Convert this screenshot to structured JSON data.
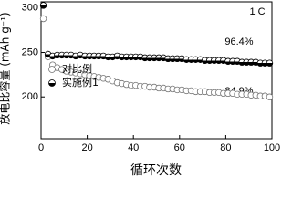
{
  "chart_data": {
    "type": "scatter",
    "y_label": "放电比容量 (mAh g⁻¹)",
    "x_label": "循环次数",
    "annotations": [
      "1 C",
      "96.4%",
      "84.9%"
    ],
    "x": [
      1,
      3,
      5,
      7,
      9,
      11,
      13,
      15,
      17,
      19,
      21,
      23,
      25,
      27,
      29,
      31,
      33,
      35,
      37,
      39,
      41,
      43,
      45,
      47,
      49,
      51,
      53,
      55,
      57,
      59,
      61,
      63,
      65,
      67,
      69,
      71,
      73,
      75,
      77,
      79,
      81,
      83,
      85,
      87,
      89,
      91,
      93,
      95,
      97,
      99
    ],
    "series": [
      {
        "name": "对比例",
        "color": "#777777",
        "marker": "open",
        "values": [
          288,
          245,
          236,
          233,
          231,
          229,
          228,
          227,
          226,
          225,
          224,
          223,
          222,
          221,
          220,
          218,
          216,
          215,
          214,
          213,
          213,
          212,
          212,
          211,
          211,
          210,
          210,
          209,
          209,
          208,
          208,
          207,
          207,
          206,
          206,
          206,
          205,
          205,
          205,
          204,
          204,
          204,
          203,
          203,
          203,
          202,
          202,
          201,
          201,
          200
        ]
      },
      {
        "name": "实施例1",
        "color": "#000000",
        "marker": "half",
        "values": [
          303,
          248,
          246,
          247,
          247,
          247,
          247,
          246,
          247,
          246,
          246,
          246,
          246,
          246,
          245,
          245,
          246,
          245,
          245,
          245,
          245,
          245,
          244,
          244,
          244,
          244,
          244,
          243,
          243,
          243,
          243,
          242,
          242,
          242,
          242,
          241,
          241,
          241,
          241,
          241,
          240,
          240,
          240,
          239,
          239,
          239,
          239,
          238,
          238,
          238
        ]
      }
    ],
    "xlim": [
      0,
      100
    ],
    "xticks": [
      0,
      20,
      40,
      60,
      80,
      100
    ],
    "ylim": [
      153,
      307
    ],
    "yticks": [
      200,
      250,
      300
    ]
  }
}
